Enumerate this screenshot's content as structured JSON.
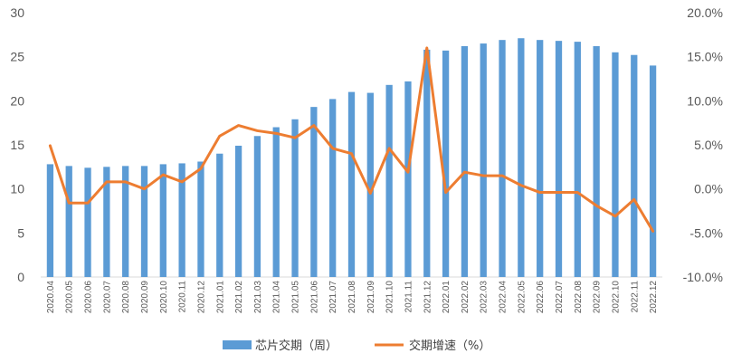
{
  "chart_data": {
    "type": "bar",
    "title": "",
    "xlabel": "",
    "ylabel": "",
    "categories": [
      "2020.04",
      "2020.05",
      "2020.06",
      "2020.07",
      "2020.08",
      "2020.09",
      "2020.10",
      "2020.11",
      "2020.12",
      "2021.01",
      "2021.02",
      "2021.03",
      "2021.04",
      "2021.05",
      "2021.06",
      "2021.07",
      "2021.08",
      "2021.09",
      "2021.10",
      "2021.11",
      "2021.12",
      "2022.01",
      "2022.02",
      "2022.03",
      "2022.04",
      "2022.05",
      "2022.06",
      "2022.07",
      "2022.08",
      "2022.09",
      "2022.10",
      "2022.11",
      "2022.12"
    ],
    "series": [
      {
        "name": "芯片交期（周）",
        "type": "bar",
        "axis": "left",
        "color": "#5b9bd5",
        "values": [
          12.8,
          12.6,
          12.4,
          12.5,
          12.6,
          12.6,
          12.8,
          12.9,
          13.1,
          14.0,
          14.9,
          16.0,
          17.0,
          17.9,
          19.3,
          20.2,
          21.0,
          20.9,
          21.8,
          22.2,
          25.8,
          25.7,
          26.2,
          26.5,
          26.9,
          27.1,
          26.9,
          26.8,
          26.7,
          26.2,
          25.5,
          25.2,
          24.0
        ]
      },
      {
        "name": "交期增速（%）",
        "type": "line",
        "axis": "right",
        "color": "#ed7d31",
        "values": [
          4.9,
          -1.6,
          -1.6,
          0.8,
          0.8,
          0.0,
          1.6,
          0.8,
          2.3,
          6.0,
          7.2,
          6.6,
          6.3,
          5.8,
          7.2,
          4.6,
          4.0,
          -0.5,
          4.6,
          1.9,
          16.0,
          -0.4,
          1.9,
          1.5,
          1.5,
          0.4,
          -0.4,
          -0.4,
          -0.4,
          -1.9,
          -3.1,
          -1.2,
          -4.8
        ]
      }
    ],
    "y_left": {
      "min": 0,
      "max": 30,
      "ticks": [
        "0",
        "5",
        "10",
        "15",
        "20",
        "25",
        "30"
      ]
    },
    "y_right": {
      "min": -10,
      "max": 20,
      "ticks": [
        "-10.0%",
        "-5.0%",
        "0.0%",
        "5.0%",
        "10.0%",
        "15.0%",
        "20.0%"
      ]
    },
    "grid": false,
    "legend_position": "bottom"
  }
}
